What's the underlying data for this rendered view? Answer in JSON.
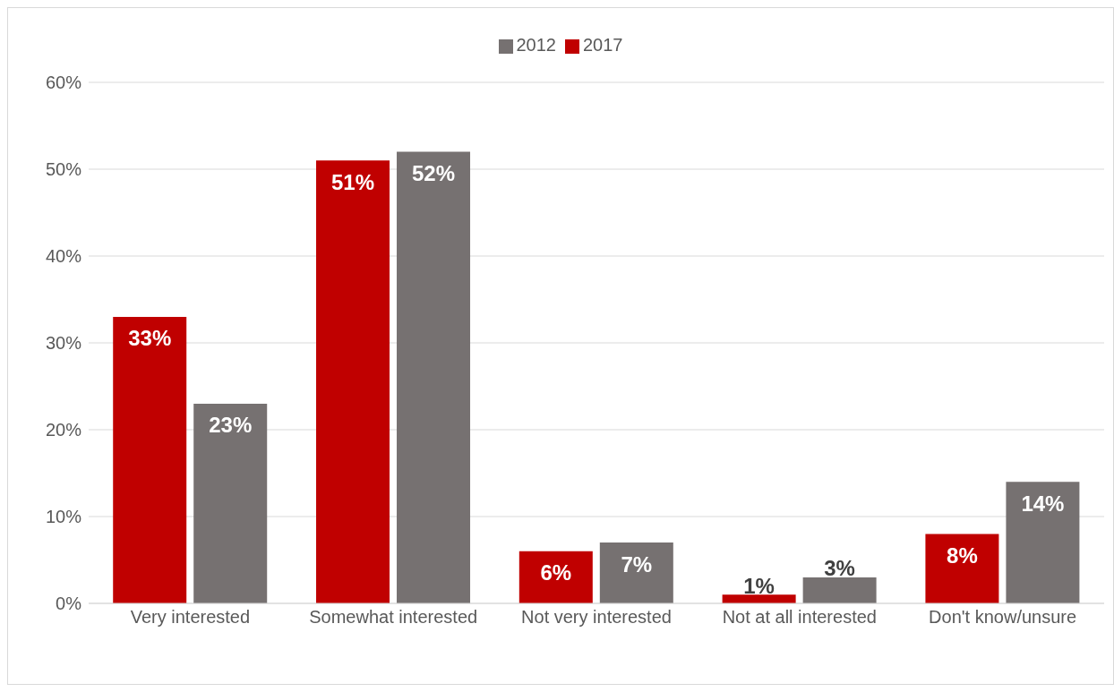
{
  "chart_data": {
    "type": "bar",
    "categories": [
      "Very interested",
      "Somewhat interested",
      "Not very interested",
      "Not at all interested",
      "Don't know/unsure"
    ],
    "series": [
      {
        "name": "2017",
        "color": "#c00000",
        "values": [
          33,
          51,
          6,
          1,
          8
        ],
        "value_labels": [
          "33%",
          "51%",
          "6%",
          "1%",
          "8%"
        ]
      },
      {
        "name": "2012",
        "color": "#767171",
        "values": [
          23,
          52,
          7,
          3,
          14
        ],
        "value_labels": [
          "23%",
          "52%",
          "7%",
          "3%",
          "14%"
        ]
      }
    ],
    "ylim": [
      0,
      60
    ],
    "yticks": [
      {
        "value": 0,
        "label": "0%"
      },
      {
        "value": 10,
        "label": "10%"
      },
      {
        "value": 20,
        "label": "20%"
      },
      {
        "value": 30,
        "label": "30%"
      },
      {
        "value": 40,
        "label": "40%"
      },
      {
        "value": 50,
        "label": "50%"
      },
      {
        "value": 60,
        "label": "60%"
      }
    ],
    "grid": "y",
    "legend": "top"
  }
}
